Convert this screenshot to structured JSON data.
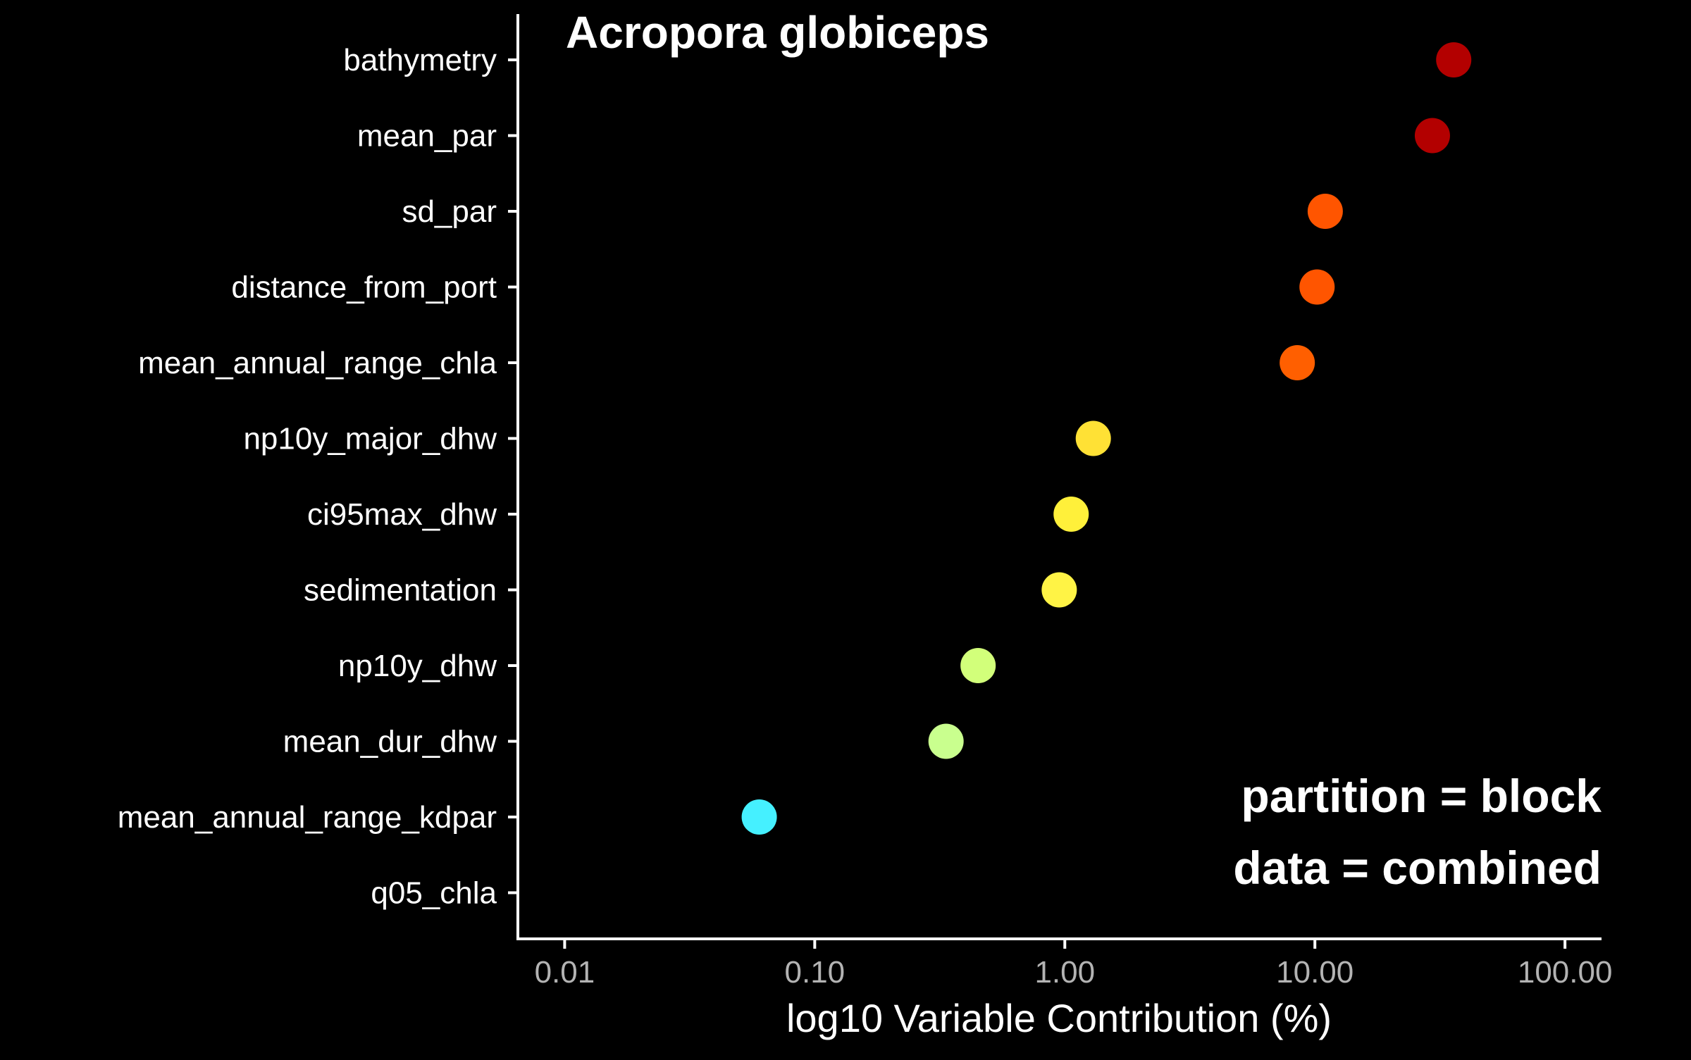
{
  "chart_data": {
    "type": "scatter",
    "title": "Acropora globiceps",
    "xlabel": "log10 Variable Contribution (%)",
    "ylabel": "",
    "x_scale": "log10",
    "xlim": [
      0.0065,
      140
    ],
    "x_ticks": [
      0.01,
      0.1,
      1,
      10,
      100
    ],
    "x_tick_labels": [
      "0.01",
      "0.10",
      "1.00",
      "10.00",
      "100.00"
    ],
    "grid": false,
    "legend": "none",
    "categories": [
      "bathymetry",
      "mean_par",
      "sd_par",
      "distance_from_port",
      "mean_annual_range_chla",
      "np10y_major_dhw",
      "ci95max_dhw",
      "sedimentation",
      "np10y_dhw",
      "mean_dur_dhw",
      "mean_annual_range_kdpar",
      "q05_chla"
    ],
    "values": [
      35.9,
      29.5,
      11.0,
      10.2,
      8.5,
      1.3,
      1.06,
      0.95,
      0.45,
      0.335,
      0.06,
      null
    ],
    "point_colors": [
      "#b30000",
      "#b30000",
      "#ff5500",
      "#ff5500",
      "#ff5f00",
      "#ffe135",
      "#fff03a",
      "#fff345",
      "#d2ff7a",
      "#c9ff8e",
      "#45f0ff",
      null
    ],
    "annotations": [
      "partition = block",
      "data = combined"
    ]
  }
}
